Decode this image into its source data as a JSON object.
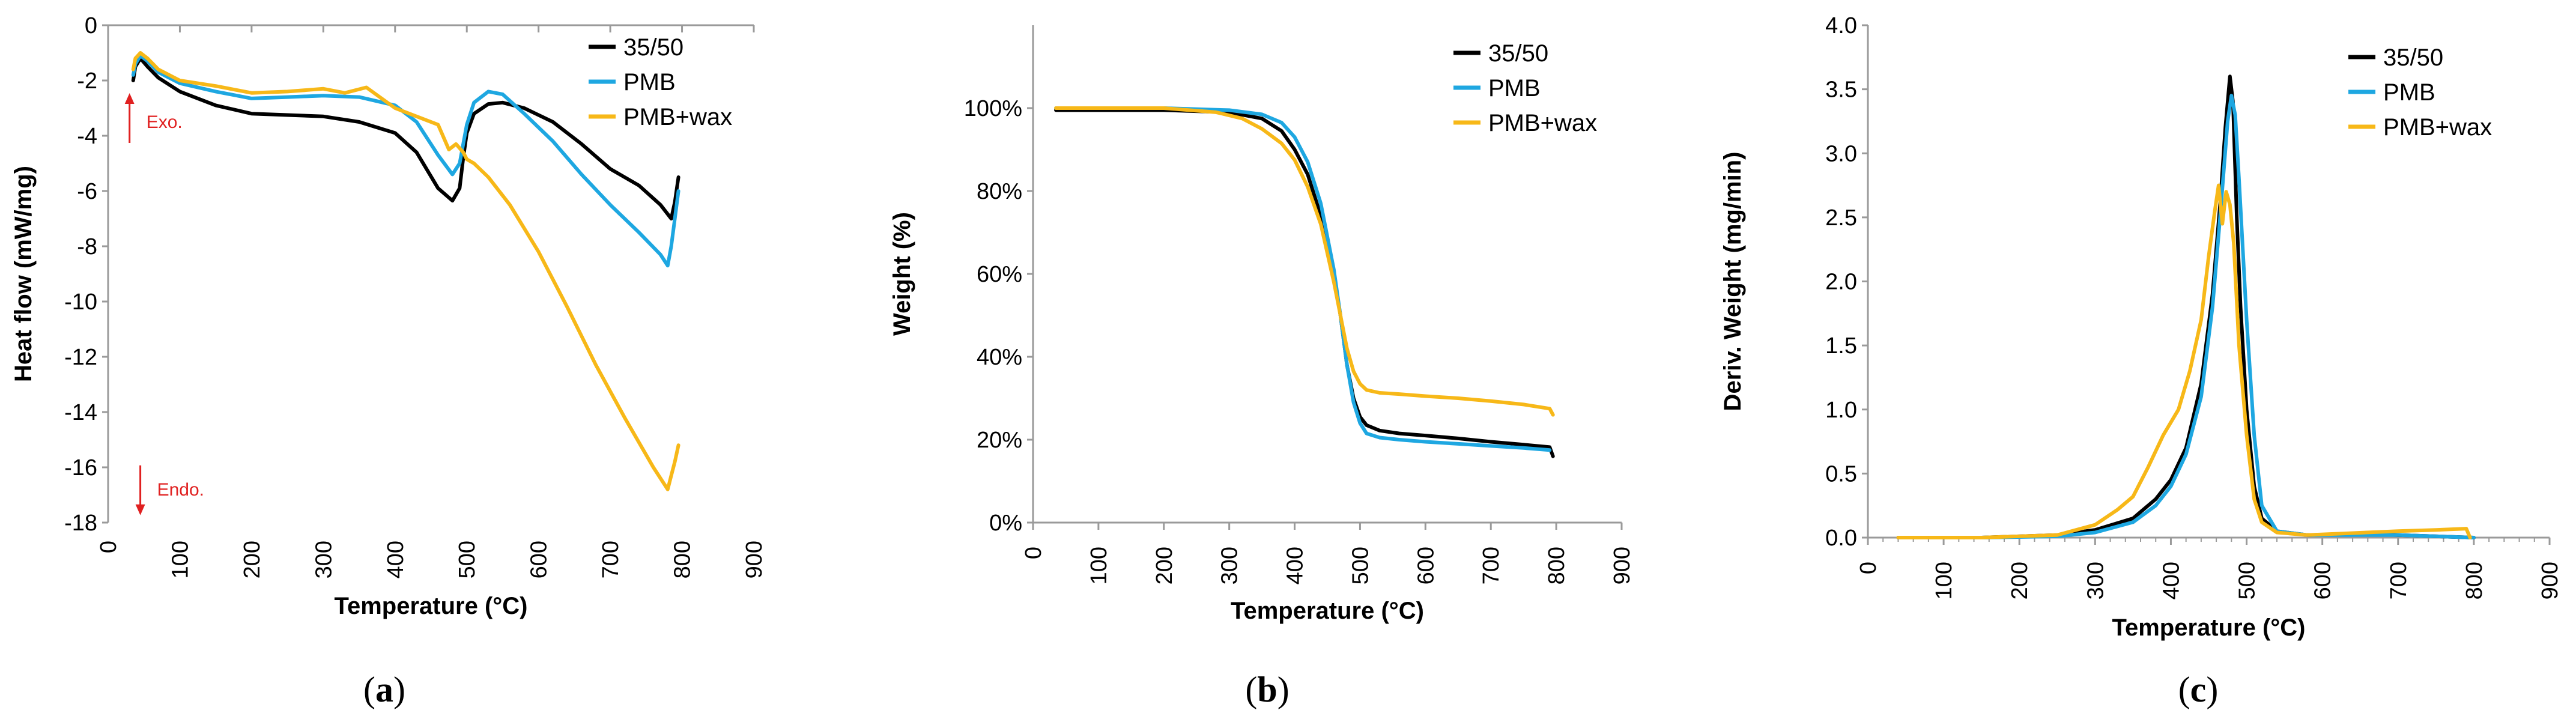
{
  "colors": {
    "black": "#000000",
    "blue": "#1ea7e1",
    "yellow": "#f7b818",
    "red": "#e02020"
  },
  "chart_data": [
    {
      "type": "line",
      "panel_label": "(a)",
      "panel_letter": "a",
      "title": "",
      "xlabel": "Temperature (°C)",
      "ylabel": "Heat flow (mW/mg)",
      "xlim": [
        0,
        900
      ],
      "ylim": [
        -18,
        0
      ],
      "xticks": [
        0,
        100,
        200,
        300,
        400,
        500,
        600,
        700,
        800,
        900
      ],
      "yticks": [
        0,
        -2,
        -4,
        -6,
        -8,
        -10,
        -12,
        -14,
        -16,
        -18
      ],
      "ytick_labels": [
        "0",
        "-2",
        "-4",
        "-6",
        "-8",
        "-10",
        "-12",
        "-14",
        "-16",
        "-18"
      ],
      "legend": "top-right",
      "annotations": [
        {
          "text": "Exo.",
          "x": 55,
          "y": -3.5,
          "arrow": "up"
        },
        {
          "text": "Endo.",
          "x": 70,
          "y": -16.8,
          "arrow": "down"
        }
      ],
      "series": [
        {
          "name": "35/50",
          "color": "#000000",
          "x": [
            35,
            38,
            45,
            55,
            70,
            100,
            150,
            200,
            250,
            300,
            350,
            400,
            430,
            460,
            480,
            490,
            495,
            500,
            510,
            530,
            550,
            580,
            620,
            660,
            700,
            740,
            770,
            785,
            790,
            795
          ],
          "y": [
            -2.0,
            -1.5,
            -1.2,
            -1.5,
            -1.9,
            -2.4,
            -2.9,
            -3.2,
            -3.25,
            -3.3,
            -3.5,
            -3.9,
            -4.6,
            -5.9,
            -6.35,
            -5.9,
            -4.8,
            -3.9,
            -3.2,
            -2.85,
            -2.8,
            -3.0,
            -3.5,
            -4.3,
            -5.2,
            -5.8,
            -6.5,
            -7.0,
            -6.4,
            -5.5
          ]
        },
        {
          "name": "PMB",
          "color": "#1ea7e1",
          "x": [
            35,
            38,
            45,
            55,
            70,
            100,
            150,
            200,
            250,
            300,
            350,
            400,
            430,
            460,
            480,
            490,
            500,
            510,
            530,
            550,
            580,
            620,
            660,
            700,
            740,
            770,
            780,
            785,
            790,
            795
          ],
          "y": [
            -1.8,
            -1.4,
            -1.1,
            -1.3,
            -1.7,
            -2.1,
            -2.4,
            -2.65,
            -2.6,
            -2.55,
            -2.6,
            -2.9,
            -3.5,
            -4.7,
            -5.4,
            -5.0,
            -3.6,
            -2.8,
            -2.4,
            -2.5,
            -3.2,
            -4.2,
            -5.4,
            -6.5,
            -7.5,
            -8.3,
            -8.7,
            -8.0,
            -7.0,
            -6.0
          ]
        },
        {
          "name": "PMB+wax",
          "color": "#f7b818",
          "x": [
            35,
            38,
            45,
            55,
            70,
            100,
            150,
            200,
            250,
            300,
            330,
            360,
            400,
            430,
            460,
            475,
            485,
            495,
            500,
            510,
            530,
            560,
            600,
            640,
            680,
            720,
            760,
            780,
            785,
            790,
            795
          ],
          "y": [
            -1.6,
            -1.2,
            -1.0,
            -1.2,
            -1.6,
            -2.0,
            -2.2,
            -2.45,
            -2.4,
            -2.3,
            -2.45,
            -2.25,
            -3.0,
            -3.3,
            -3.6,
            -4.5,
            -4.3,
            -4.6,
            -4.85,
            -5.0,
            -5.5,
            -6.5,
            -8.2,
            -10.2,
            -12.3,
            -14.2,
            -16.0,
            -16.8,
            -16.3,
            -15.8,
            -15.2
          ]
        }
      ]
    },
    {
      "type": "line",
      "panel_label": "(b)",
      "panel_letter": "b",
      "title": "",
      "xlabel": "Temperature (°C)",
      "ylabel": "Weight (%)",
      "xlim": [
        0,
        900
      ],
      "ylim": [
        0,
        120
      ],
      "xticks": [
        0,
        100,
        200,
        300,
        400,
        500,
        600,
        700,
        800,
        900
      ],
      "yticks": [
        0,
        20,
        40,
        60,
        80,
        100
      ],
      "ytick_labels": [
        "0%",
        "20%",
        "40%",
        "60%",
        "80%",
        "100%"
      ],
      "legend": "top-right",
      "series": [
        {
          "name": "35/50",
          "color": "#000000",
          "x": [
            35,
            100,
            200,
            300,
            350,
            380,
            400,
            420,
            440,
            460,
            470,
            480,
            490,
            500,
            510,
            530,
            560,
            600,
            650,
            700,
            750,
            790,
            795
          ],
          "y": [
            99.5,
            99.5,
            99.5,
            99.0,
            97.5,
            94.5,
            90,
            84,
            74,
            60,
            50,
            38,
            30,
            25.5,
            23.5,
            22.2,
            21.5,
            21,
            20.3,
            19.5,
            18.8,
            18.2,
            16
          ]
        },
        {
          "name": "PMB",
          "color": "#1ea7e1",
          "x": [
            35,
            100,
            200,
            300,
            350,
            380,
            400,
            420,
            440,
            460,
            470,
            480,
            490,
            500,
            510,
            530,
            560,
            600,
            650,
            700,
            750,
            790
          ],
          "y": [
            100,
            100,
            100,
            99.5,
            98.5,
            96.5,
            93,
            87,
            77,
            61,
            50,
            38,
            29,
            24,
            21.5,
            20.5,
            20,
            19.5,
            19,
            18.5,
            18,
            17.5
          ]
        },
        {
          "name": "PMB+wax",
          "color": "#f7b818",
          "x": [
            35,
            100,
            200,
            280,
            320,
            350,
            380,
            400,
            420,
            440,
            460,
            470,
            480,
            490,
            500,
            510,
            530,
            560,
            600,
            650,
            700,
            750,
            790,
            795
          ],
          "y": [
            100,
            100,
            100,
            99,
            97.5,
            95,
            91.5,
            87.5,
            81,
            72,
            58,
            50,
            42,
            36.5,
            33.5,
            32,
            31.3,
            31,
            30.5,
            30,
            29.3,
            28.5,
            27.5,
            26
          ]
        }
      ]
    },
    {
      "type": "line",
      "panel_label": "(c)",
      "panel_letter": "c",
      "title": "",
      "xlabel": "Temperature (°C)",
      "ylabel": "Deriv. Weight (mg/min)",
      "xlim": [
        0,
        900
      ],
      "ylim": [
        0,
        4
      ],
      "xticks": [
        0,
        100,
        200,
        300,
        400,
        500,
        600,
        700,
        800,
        900
      ],
      "yticks": [
        0,
        0.5,
        1,
        1.5,
        2,
        2.5,
        3,
        3.5,
        4
      ],
      "ytick_labels": [
        "0.0",
        "0.5",
        "1.0",
        "1.5",
        "2.0",
        "2.5",
        "3.0",
        "3.5",
        "4.0"
      ],
      "legend": "top-right",
      "series": [
        {
          "name": "35/50",
          "color": "#000000",
          "x": [
            40,
            150,
            250,
            300,
            350,
            380,
            400,
            420,
            440,
            455,
            465,
            472,
            478,
            482,
            487,
            492,
            500,
            510,
            520,
            540,
            580,
            650,
            700,
            800
          ],
          "y": [
            0,
            0,
            0.02,
            0.06,
            0.15,
            0.3,
            0.45,
            0.7,
            1.2,
            1.9,
            2.6,
            3.2,
            3.6,
            3.4,
            2.5,
            1.8,
            1.0,
            0.4,
            0.15,
            0.05,
            0.02,
            0.03,
            0.02,
            0
          ]
        },
        {
          "name": "PMB",
          "color": "#1ea7e1",
          "x": [
            40,
            150,
            250,
            300,
            350,
            380,
            400,
            420,
            440,
            455,
            465,
            475,
            480,
            485,
            490,
            500,
            510,
            520,
            540,
            580,
            700,
            800
          ],
          "y": [
            0,
            0,
            0.01,
            0.04,
            0.12,
            0.25,
            0.4,
            0.65,
            1.1,
            1.8,
            2.5,
            3.25,
            3.45,
            3.3,
            2.8,
            1.7,
            0.8,
            0.25,
            0.05,
            0.02,
            0.02,
            0
          ]
        },
        {
          "name": "PMB+wax",
          "color": "#f7b818",
          "x": [
            40,
            150,
            250,
            300,
            330,
            350,
            370,
            390,
            410,
            425,
            440,
            450,
            458,
            463,
            468,
            473,
            478,
            483,
            490,
            500,
            510,
            520,
            540,
            580,
            700,
            750,
            790,
            795
          ],
          "y": [
            0,
            0,
            0.02,
            0.1,
            0.22,
            0.32,
            0.55,
            0.8,
            1.0,
            1.3,
            1.7,
            2.2,
            2.55,
            2.75,
            2.45,
            2.7,
            2.6,
            2.3,
            1.5,
            0.8,
            0.3,
            0.12,
            0.04,
            0.02,
            0.05,
            0.06,
            0.07,
            0
          ]
        }
      ]
    }
  ]
}
